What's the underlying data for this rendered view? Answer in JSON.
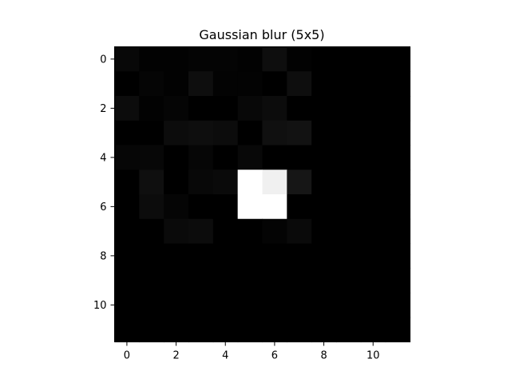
{
  "chart_data": {
    "type": "heatmap",
    "title": "Gaussian blur (5x5)",
    "xlabel": "",
    "ylabel": "",
    "colormap": "gray",
    "color_range": [
      0,
      255
    ],
    "x_ticks": [
      0,
      2,
      4,
      6,
      8,
      10
    ],
    "y_ticks": [
      0,
      2,
      4,
      6,
      8,
      10
    ],
    "xlim": [
      -0.5,
      11.5
    ],
    "ylim": [
      11.5,
      -0.5
    ],
    "grid": false,
    "rows": 12,
    "cols": 12,
    "values": [
      [
        8,
        2,
        2,
        4,
        4,
        2,
        14,
        2,
        0,
        0,
        0,
        0
      ],
      [
        0,
        5,
        2,
        14,
        3,
        3,
        0,
        14,
        0,
        0,
        0,
        0
      ],
      [
        12,
        2,
        5,
        0,
        0,
        8,
        12,
        0,
        0,
        0,
        0,
        0
      ],
      [
        0,
        0,
        12,
        14,
        12,
        0,
        16,
        18,
        0,
        0,
        0,
        0
      ],
      [
        6,
        7,
        0,
        6,
        0,
        8,
        0,
        0,
        0,
        0,
        0,
        0
      ],
      [
        0,
        15,
        0,
        8,
        10,
        255,
        240,
        22,
        0,
        0,
        0,
        0
      ],
      [
        0,
        12,
        5,
        0,
        0,
        255,
        255,
        0,
        0,
        0,
        0,
        0
      ],
      [
        0,
        0,
        10,
        12,
        0,
        0,
        4,
        10,
        0,
        0,
        0,
        0
      ],
      [
        0,
        0,
        0,
        0,
        0,
        0,
        0,
        0,
        0,
        0,
        0,
        0
      ],
      [
        0,
        0,
        0,
        0,
        0,
        0,
        0,
        0,
        0,
        0,
        0,
        0
      ],
      [
        0,
        0,
        0,
        0,
        0,
        0,
        0,
        0,
        0,
        0,
        0,
        0
      ],
      [
        0,
        0,
        0,
        0,
        0,
        0,
        0,
        0,
        0,
        0,
        0,
        0
      ]
    ]
  }
}
